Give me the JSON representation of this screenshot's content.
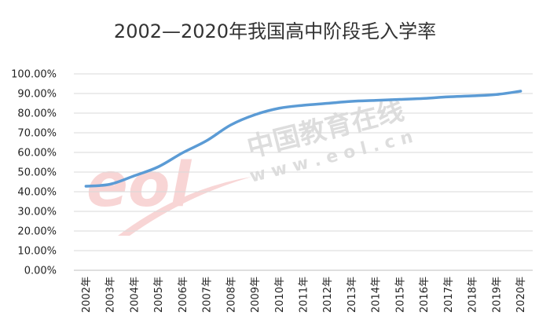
{
  "chart_data": {
    "type": "line",
    "title": "2002—2020年我国高中阶段毛入学率",
    "categories": [
      "2002年",
      "2003年",
      "2004年",
      "2005年",
      "2006年",
      "2007年",
      "2008年",
      "2009年",
      "2010年",
      "2011年",
      "2012年",
      "2013年",
      "2014年",
      "2015年",
      "2016年",
      "2017年",
      "2018年",
      "2019年",
      "2020年"
    ],
    "series": [
      {
        "values": [
          42.8,
          43.8,
          48.1,
          52.7,
          59.8,
          66.0,
          74.0,
          79.2,
          82.5,
          84.0,
          85.0,
          86.0,
          86.5,
          87.0,
          87.5,
          88.3,
          88.8,
          89.5,
          91.2
        ]
      }
    ],
    "yticks": [
      "0.00%",
      "10.00%",
      "20.00%",
      "30.00%",
      "40.00%",
      "50.00%",
      "60.00%",
      "70.00%",
      "80.00%",
      "90.00%",
      "100.00%"
    ],
    "ylim": [
      0,
      100
    ],
    "grid": true,
    "legend": "none",
    "line_color": "#5b9bd5"
  },
  "watermark": {
    "logo_text": "eol",
    "name_text": "中国教育在线",
    "url_text": "w w w . e o l . c n"
  }
}
